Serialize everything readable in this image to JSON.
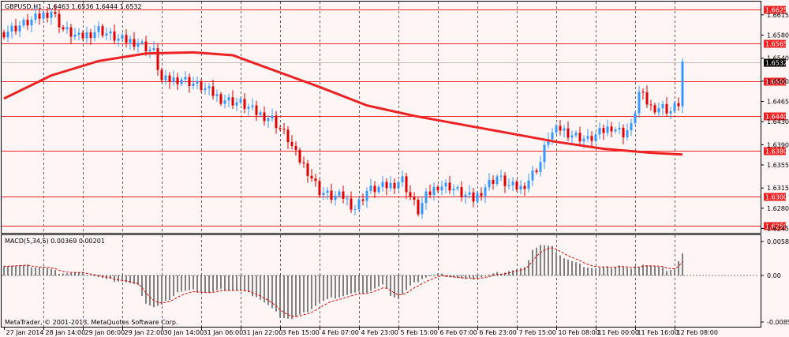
{
  "header": {
    "symbol": "GBPUSD,H1",
    "ohlc": "1.6463 1.6536 1.6444 1.6532"
  },
  "macd_header": "MACD(5,34,5) 0.00369 0.00201",
  "copyright": "MetaTrader, © 2001-2013, MetaQuotes Software Corp.",
  "colors": {
    "background": "#fff5f5",
    "grid": "#000000",
    "bull": "#3399ff",
    "bear": "#dd0000",
    "ma": "#ee2222",
    "levels": "#ee2222",
    "hist": "#808080",
    "signal": "#ee0000"
  },
  "chart_data": [
    {
      "type": "candlestick",
      "symbol": "GBPUSD",
      "timeframe": "H1",
      "price_ticks": [
        "1.6615",
        "1.6580",
        "1.6540",
        "1.6500",
        "1.6465",
        "1.6430",
        "1.6390",
        "1.6355",
        "1.6315",
        "1.6280",
        "1.6245"
      ],
      "ylim": [
        1.6236,
        1.6638
      ],
      "current_price": "1.6532",
      "horizontal_levels": [
        "1.6625",
        "1.6565",
        "1.6500",
        "1.6440",
        "1.6380",
        "1.6300",
        "1.6250"
      ],
      "x_labels": [
        "27 Jan 2014",
        "28 Jan 14:00",
        "29 Jan 06:00",
        "29 Jan 22:00",
        "30 Jan 14:00",
        "31 Jan 06:00",
        "31 Jan 22:00",
        "3 Feb 15:00",
        "4 Feb 07:00",
        "4 Feb 23:00",
        "5 Feb 15:00",
        "6 Feb 07:00",
        "6 Feb 23:00",
        "7 Feb 15:00",
        "10 Feb 08:00",
        "11 Feb 00:00",
        "11 Feb 16:00",
        "12 Feb 08:00"
      ],
      "close_path": [
        [
          0,
          1.6585
        ],
        [
          7,
          1.6605
        ],
        [
          12,
          1.6622
        ],
        [
          15,
          1.659
        ],
        [
          19,
          1.6575
        ],
        [
          24,
          1.659
        ],
        [
          29,
          1.6572
        ],
        [
          34,
          1.6568
        ],
        [
          38,
          1.655
        ],
        [
          40,
          1.65
        ],
        [
          45,
          1.6505
        ],
        [
          50,
          1.649
        ],
        [
          55,
          1.647
        ],
        [
          60,
          1.6462
        ],
        [
          64,
          1.6445
        ],
        [
          68,
          1.6435
        ],
        [
          72,
          1.64
        ],
        [
          74,
          1.6372
        ],
        [
          77,
          1.6345
        ],
        [
          80,
          1.631
        ],
        [
          83,
          1.63
        ],
        [
          86,
          1.63
        ],
        [
          89,
          1.628
        ],
        [
          92,
          1.631
        ],
        [
          95,
          1.6315
        ],
        [
          98,
          1.632
        ],
        [
          101,
          1.633
        ],
        [
          103,
          1.63
        ],
        [
          105,
          1.6275
        ],
        [
          107,
          1.63
        ],
        [
          110,
          1.632
        ],
        [
          113,
          1.6318
        ],
        [
          116,
          1.6305
        ],
        [
          119,
          1.6295
        ],
        [
          122,
          1.6318
        ],
        [
          125,
          1.6335
        ],
        [
          128,
          1.6318
        ],
        [
          131,
          1.6315
        ],
        [
          133,
          1.633
        ],
        [
          136,
          1.636
        ],
        [
          138,
          1.6405
        ],
        [
          141,
          1.6418
        ],
        [
          144,
          1.6408
        ],
        [
          148,
          1.6398
        ],
        [
          151,
          1.641
        ],
        [
          154,
          1.6422
        ],
        [
          157,
          1.641
        ],
        [
          159,
          1.642
        ],
        [
          161,
          1.648
        ],
        [
          164,
          1.6455
        ],
        [
          167,
          1.6455
        ],
        [
          169,
          1.6448
        ],
        [
          171,
          1.6462
        ],
        [
          172,
          1.6532
        ]
      ],
      "moving_average": [
        [
          0,
          1.647
        ],
        [
          12,
          1.651
        ],
        [
          24,
          1.6535
        ],
        [
          36,
          1.6548
        ],
        [
          48,
          1.655
        ],
        [
          58,
          1.6545
        ],
        [
          68,
          1.652
        ],
        [
          80,
          1.649
        ],
        [
          92,
          1.6458
        ],
        [
          104,
          1.644
        ],
        [
          116,
          1.6425
        ],
        [
          128,
          1.641
        ],
        [
          140,
          1.6395
        ],
        [
          152,
          1.6383
        ],
        [
          164,
          1.6376
        ],
        [
          172,
          1.6373
        ]
      ],
      "bar_count": 173
    },
    {
      "type": "bar",
      "indicator": "MACD",
      "params": "5,34,5",
      "macd": 0.00369,
      "signal": 0.00201,
      "y_ticks": [
        "0.0058",
        "0.00",
        "-0.00852"
      ],
      "ylim": [
        -0.00852,
        0.0058
      ],
      "macd_path": [
        [
          0,
          0.0018
        ],
        [
          6,
          0.0016
        ],
        [
          10,
          0.0014
        ],
        [
          14,
          0.0005
        ],
        [
          18,
          0.0004
        ],
        [
          22,
          0.0002
        ],
        [
          26,
          -0.0008
        ],
        [
          30,
          -0.001
        ],
        [
          34,
          -0.002
        ],
        [
          36,
          -0.005
        ],
        [
          38,
          -0.0058
        ],
        [
          40,
          -0.0055
        ],
        [
          44,
          -0.003
        ],
        [
          48,
          -0.0028
        ],
        [
          52,
          -0.0032
        ],
        [
          56,
          -0.0025
        ],
        [
          60,
          -0.0028
        ],
        [
          64,
          -0.0038
        ],
        [
          67,
          -0.0055
        ],
        [
          70,
          -0.0075
        ],
        [
          73,
          -0.008
        ],
        [
          76,
          -0.007
        ],
        [
          80,
          -0.005
        ],
        [
          84,
          -0.004
        ],
        [
          88,
          -0.0034
        ],
        [
          92,
          -0.003
        ],
        [
          96,
          -0.0018
        ],
        [
          98,
          -0.0035
        ],
        [
          100,
          -0.0042
        ],
        [
          103,
          -0.002
        ],
        [
          106,
          -0.0005
        ],
        [
          110,
          0.0002
        ],
        [
          114,
          -0.0003
        ],
        [
          117,
          -0.0008
        ],
        [
          120,
          -0.0004
        ],
        [
          124,
          0.0002
        ],
        [
          128,
          0.0008
        ],
        [
          132,
          0.0012
        ],
        [
          134,
          0.0045
        ],
        [
          136,
          0.0052
        ],
        [
          139,
          0.0048
        ],
        [
          142,
          0.003
        ],
        [
          146,
          0.0018
        ],
        [
          150,
          0.0012
        ],
        [
          153,
          0.0013
        ],
        [
          156,
          0.0018
        ],
        [
          159,
          0.001
        ],
        [
          162,
          0.002
        ],
        [
          165,
          0.0015
        ],
        [
          168,
          0.001
        ],
        [
          170,
          0.0012
        ],
        [
          172,
          0.0037
        ]
      ]
    }
  ]
}
